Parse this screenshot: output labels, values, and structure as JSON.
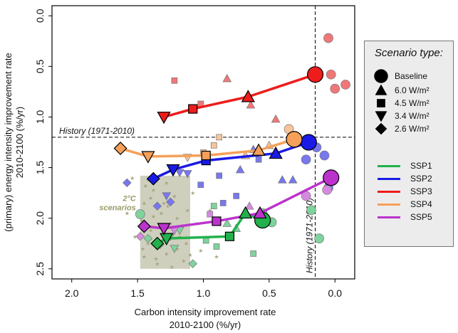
{
  "chart_data": {
    "type": "scatter",
    "xlabel_line1": "Carbon intensity improvement rate",
    "xlabel_line2": "2010-2100  (%/yr)",
    "ylabel_line1": "(primary) energy intensity improvement rate",
    "ylabel_line2": "2010-2100  (%/yr)",
    "xlim": [
      2.15,
      -0.15
    ],
    "ylim": [
      2.6,
      -0.1
    ],
    "x_ticks": [
      "2.0",
      "1.5",
      "1.0",
      "0.5",
      "0.0"
    ],
    "x_tick_values": [
      2.0,
      1.5,
      1.0,
      0.5,
      0.0
    ],
    "y_ticks": [
      "0.0",
      "0.5",
      "1.0",
      "1.5",
      "2.0",
      "2.5"
    ],
    "y_tick_values": [
      0.0,
      0.5,
      1.0,
      1.5,
      2.0,
      2.5
    ],
    "history": {
      "label_h": "History (1971-2010)",
      "label_v": "History (1971-2010)",
      "carbon_rate": 0.15,
      "energy_rate": 1.2
    },
    "two_degree_box": {
      "label_line1": "2°C",
      "label_line2": "scenarios",
      "x_range": [
        1.1,
        1.48
      ],
      "y_range": [
        1.58,
        2.5
      ],
      "color": "#a8a888"
    },
    "two_degree_points": [
      [
        1.42,
        1.62
      ],
      [
        1.38,
        1.72
      ],
      [
        1.45,
        1.85
      ],
      [
        1.32,
        1.95
      ],
      [
        1.25,
        2.05
      ],
      [
        1.4,
        2.12
      ],
      [
        1.3,
        2.2
      ],
      [
        1.2,
        2.3
      ],
      [
        1.45,
        2.38
      ],
      [
        1.15,
        2.42
      ],
      [
        1.35,
        2.45
      ],
      [
        1.28,
        2.35
      ],
      [
        1.18,
        2.18
      ],
      [
        1.12,
        1.92
      ],
      [
        1.47,
        2.02
      ],
      [
        1.22,
        1.78
      ],
      [
        1.33,
        2.28
      ],
      [
        1.42,
        2.25
      ],
      [
        1.16,
        2.08
      ],
      [
        1.38,
        1.98
      ],
      [
        1.28,
        1.65
      ],
      [
        1.24,
        2.48
      ],
      [
        1.44,
        1.68
      ],
      [
        1.13,
        2.25
      ],
      [
        1.36,
        2.4
      ],
      [
        1.2,
        2.0
      ],
      [
        1.3,
        1.85
      ],
      [
        1.46,
        2.3
      ],
      [
        1.58,
        1.95
      ],
      [
        1.52,
        2.18
      ],
      [
        1.05,
        2.05
      ],
      [
        1.02,
        2.32
      ],
      [
        0.98,
        2.2
      ],
      [
        0.95,
        1.92
      ],
      [
        0.9,
        2.38
      ],
      [
        1.1,
        2.36
      ],
      [
        1.54,
        1.6
      ],
      [
        1.08,
        1.75
      ],
      [
        1.27,
        1.88
      ],
      [
        1.4,
        1.8
      ]
    ],
    "legend": {
      "title": "Scenario type:",
      "markers": [
        {
          "label": "Baseline",
          "shape": "circle"
        },
        {
          "label": "6.0 W/m²",
          "shape": "triangle-up"
        },
        {
          "label": "4.5 W/m²",
          "shape": "square"
        },
        {
          "label": "3.4 W/m²",
          "shape": "triangle-down"
        },
        {
          "label": "2.6 W/m²",
          "shape": "diamond"
        }
      ],
      "lines": [
        {
          "label": "SSP1",
          "color": "#22b14c"
        },
        {
          "label": "SSP2",
          "color": "#1a1ae6"
        },
        {
          "label": "SSP3",
          "color": "#ee1c1c"
        },
        {
          "label": "SSP4",
          "color": "#f5a05a"
        },
        {
          "label": "SSP5",
          "color": "#bb33cc"
        }
      ]
    },
    "series": [
      {
        "name": "SSP1",
        "color": "#22b14c",
        "light": "#7fd39c",
        "points": [
          [
            0.55,
            2.02,
            "circle"
          ],
          [
            0.68,
            1.95,
            "triangle-up"
          ],
          [
            0.8,
            2.18,
            "square"
          ],
          [
            1.28,
            2.2,
            "triangle-down"
          ],
          [
            1.35,
            2.25,
            "diamond"
          ]
        ],
        "scatter": [
          [
            0.18,
            1.92,
            "circle"
          ],
          [
            0.12,
            2.2,
            "circle"
          ],
          [
            0.55,
            1.95,
            "circle"
          ],
          [
            0.48,
            2.04,
            "circle"
          ],
          [
            0.75,
            2.1,
            "triangle-up"
          ],
          [
            0.82,
            2.05,
            "triangle-up"
          ],
          [
            0.9,
            2.28,
            "square"
          ],
          [
            0.62,
            2.35,
            "square"
          ],
          [
            0.98,
            2.22,
            "square"
          ],
          [
            1.25,
            2.18,
            "triangle-down"
          ],
          [
            1.22,
            2.3,
            "triangle-down"
          ],
          [
            1.08,
            2.45,
            "diamond"
          ],
          [
            1.33,
            2.26,
            "diamond"
          ],
          [
            1.18,
            2.12,
            "triangle-down"
          ],
          [
            1.42,
            2.2,
            "diamond"
          ],
          [
            1.48,
            1.96,
            "circle"
          ],
          [
            0.92,
            1.88,
            "square"
          ]
        ]
      },
      {
        "name": "SSP2",
        "color": "#1a1ae6",
        "light": "#7777ee",
        "points": [
          [
            0.2,
            1.25,
            "circle"
          ],
          [
            0.45,
            1.36,
            "triangle-up"
          ],
          [
            0.98,
            1.43,
            "square"
          ],
          [
            1.23,
            1.52,
            "triangle-down"
          ],
          [
            1.38,
            1.61,
            "diamond"
          ]
        ],
        "scatter": [
          [
            0.14,
            1.3,
            "circle"
          ],
          [
            0.08,
            1.38,
            "circle"
          ],
          [
            0.05,
            1.7,
            "circle"
          ],
          [
            0.22,
            1.42,
            "circle"
          ],
          [
            0.4,
            1.62,
            "triangle-up"
          ],
          [
            0.62,
            1.32,
            "triangle-up"
          ],
          [
            0.72,
            1.52,
            "triangle-up"
          ],
          [
            0.32,
            1.62,
            "triangle-up"
          ],
          [
            0.88,
            1.58,
            "square"
          ],
          [
            1.02,
            1.67,
            "square"
          ],
          [
            0.75,
            1.78,
            "square"
          ],
          [
            0.85,
            1.85,
            "square"
          ],
          [
            0.58,
            1.42,
            "square"
          ],
          [
            1.12,
            1.56,
            "triangle-down"
          ],
          [
            1.28,
            1.78,
            "triangle-down"
          ],
          [
            1.18,
            1.55,
            "triangle-down"
          ],
          [
            1.58,
            1.65,
            "diamond"
          ],
          [
            1.35,
            1.88,
            "diamond"
          ],
          [
            1.25,
            1.84,
            "diamond"
          ]
        ]
      },
      {
        "name": "SSP3",
        "color": "#ee1c1c",
        "light": "#f07777",
        "points": [
          [
            0.15,
            0.58,
            "circle"
          ],
          [
            0.66,
            0.8,
            "triangle-up"
          ],
          [
            1.08,
            0.92,
            "square"
          ],
          [
            1.3,
            1.0,
            "triangle-down"
          ]
        ],
        "scatter": [
          [
            0.05,
            0.22,
            "circle"
          ],
          [
            0.03,
            0.58,
            "circle"
          ],
          [
            0.0,
            0.72,
            "circle"
          ],
          [
            -0.08,
            0.68,
            "circle"
          ],
          [
            0.64,
            0.88,
            "triangle-up"
          ],
          [
            0.82,
            0.62,
            "triangle-up"
          ],
          [
            0.45,
            1.02,
            "triangle-up"
          ],
          [
            1.02,
            0.87,
            "square"
          ],
          [
            1.22,
            0.64,
            "square"
          ]
        ]
      },
      {
        "name": "SSP4",
        "color": "#f5a05a",
        "light": "#f7c499",
        "points": [
          [
            0.31,
            1.22,
            "circle"
          ],
          [
            0.58,
            1.33,
            "triangle-up"
          ],
          [
            0.98,
            1.38,
            "square"
          ],
          [
            1.42,
            1.39,
            "triangle-down"
          ],
          [
            1.63,
            1.31,
            "diamond"
          ]
        ],
        "scatter": [
          [
            0.35,
            1.12,
            "circle"
          ],
          [
            0.22,
            1.25,
            "circle"
          ],
          [
            0.5,
            1.28,
            "triangle-up"
          ],
          [
            0.68,
            1.38,
            "triangle-up"
          ],
          [
            0.88,
            1.2,
            "square"
          ],
          [
            0.92,
            1.28,
            "square"
          ],
          [
            1.0,
            1.35,
            "square"
          ],
          [
            1.12,
            1.4,
            "triangle-down"
          ]
        ]
      },
      {
        "name": "SSP5",
        "color": "#bb33cc",
        "light": "#d58ae0",
        "points": [
          [
            0.03,
            1.6,
            "circle"
          ],
          [
            0.57,
            1.95,
            "triangle-up"
          ],
          [
            0.9,
            2.03,
            "square"
          ],
          [
            1.3,
            2.1,
            "triangle-down"
          ],
          [
            1.45,
            2.08,
            "diamond"
          ]
        ],
        "scatter": [
          [
            0.06,
            1.72,
            "circle"
          ],
          [
            0.22,
            1.78,
            "circle"
          ],
          [
            0.65,
            1.88,
            "triangle-up"
          ],
          [
            0.95,
            1.96,
            "square"
          ],
          [
            1.22,
            2.12,
            "triangle-down"
          ],
          [
            1.48,
            2.18,
            "diamond"
          ]
        ]
      }
    ]
  }
}
